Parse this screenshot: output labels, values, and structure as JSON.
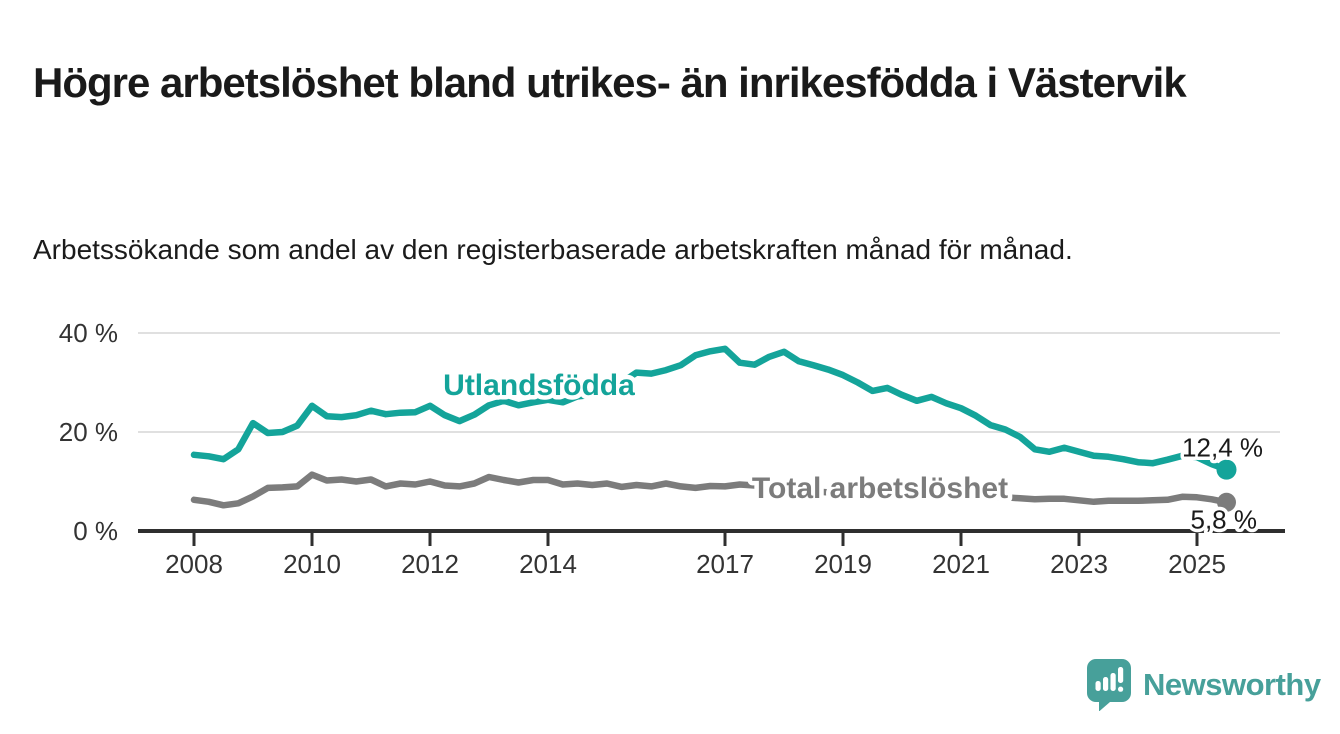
{
  "chart_data": {
    "type": "line",
    "title": "Högre arbetslöshet bland utrikes- än inrikesfödda i Västervik",
    "subtitle": "Arbetssökande som andel av den registerbaserade arbetskraften månad för månad.",
    "unit": "%",
    "x_start": 2008,
    "x_step": 0.25,
    "x_ticks": [
      2008,
      2010,
      2012,
      2014,
      2017,
      2019,
      2021,
      2023,
      2025
    ],
    "y_ticks": [
      {
        "value": 0,
        "label": "0 %"
      },
      {
        "value": 20,
        "label": "20 %"
      },
      {
        "value": 40,
        "label": "40 %"
      }
    ],
    "ylim": [
      0,
      42
    ],
    "grid": "horizontal-light",
    "legend": "inline-series-labels",
    "series": [
      {
        "name": "Utlandsfödda",
        "color": "#14a49a",
        "end_value": 12.4,
        "end_label": "12,4 %",
        "values": [
          15.4,
          15.1,
          14.5,
          16.5,
          21.8,
          19.8,
          20.0,
          21.3,
          25.3,
          23.2,
          23.0,
          23.4,
          24.3,
          23.6,
          23.9,
          24.0,
          25.3,
          23.4,
          22.2,
          23.5,
          25.4,
          26.3,
          25.4,
          26.0,
          26.5,
          26.0,
          27.2,
          27.5,
          28.5,
          30.0,
          32.0,
          31.8,
          32.5,
          33.5,
          35.5,
          36.3,
          36.8,
          34.0,
          33.6,
          35.2,
          36.2,
          34.3,
          33.5,
          32.6,
          31.5,
          30.0,
          28.3,
          28.9,
          27.5,
          26.3,
          27.1,
          25.8,
          24.8,
          23.3,
          21.4,
          20.5,
          19.0,
          16.5,
          16.0,
          16.8,
          16.0,
          15.2,
          15.0,
          14.5,
          13.9,
          13.7,
          14.4,
          15.2,
          14.9,
          13.5,
          12.4
        ]
      },
      {
        "name": "Total arbetslöshet",
        "color": "#7c7c7c",
        "end_value": 5.8,
        "end_label": "5,8 %",
        "values": [
          6.3,
          5.9,
          5.2,
          5.6,
          7.0,
          8.7,
          8.8,
          9.0,
          11.4,
          10.2,
          10.4,
          10.0,
          10.4,
          9.0,
          9.6,
          9.4,
          10.0,
          9.2,
          9.0,
          9.6,
          10.9,
          10.3,
          9.8,
          10.3,
          10.3,
          9.4,
          9.6,
          9.3,
          9.6,
          8.9,
          9.3,
          9.0,
          9.6,
          9.0,
          8.7,
          9.1,
          9.0,
          9.4,
          9.2,
          8.8,
          8.5,
          8.2,
          8.0,
          7.8,
          7.5,
          7.3,
          7.2,
          7.4,
          8.0,
          8.5,
          8.3,
          8.0,
          7.5,
          7.2,
          7.0,
          6.8,
          6.6,
          6.4,
          6.5,
          6.5,
          6.2,
          5.9,
          6.1,
          6.1,
          6.1,
          6.2,
          6.3,
          6.9,
          6.8,
          6.4,
          5.8
        ]
      }
    ],
    "colors": {
      "axis": "#2f2f2f",
      "tick_label": "#333333",
      "gridline": "#e0e0e0",
      "annotation_text": "#1a1a1a",
      "background": "#ffffff"
    }
  },
  "footer": {
    "brand": "Newsworthy",
    "brand_color": "#47a09a",
    "logo_icon": "speech-bubble-bar-chart-icon"
  }
}
